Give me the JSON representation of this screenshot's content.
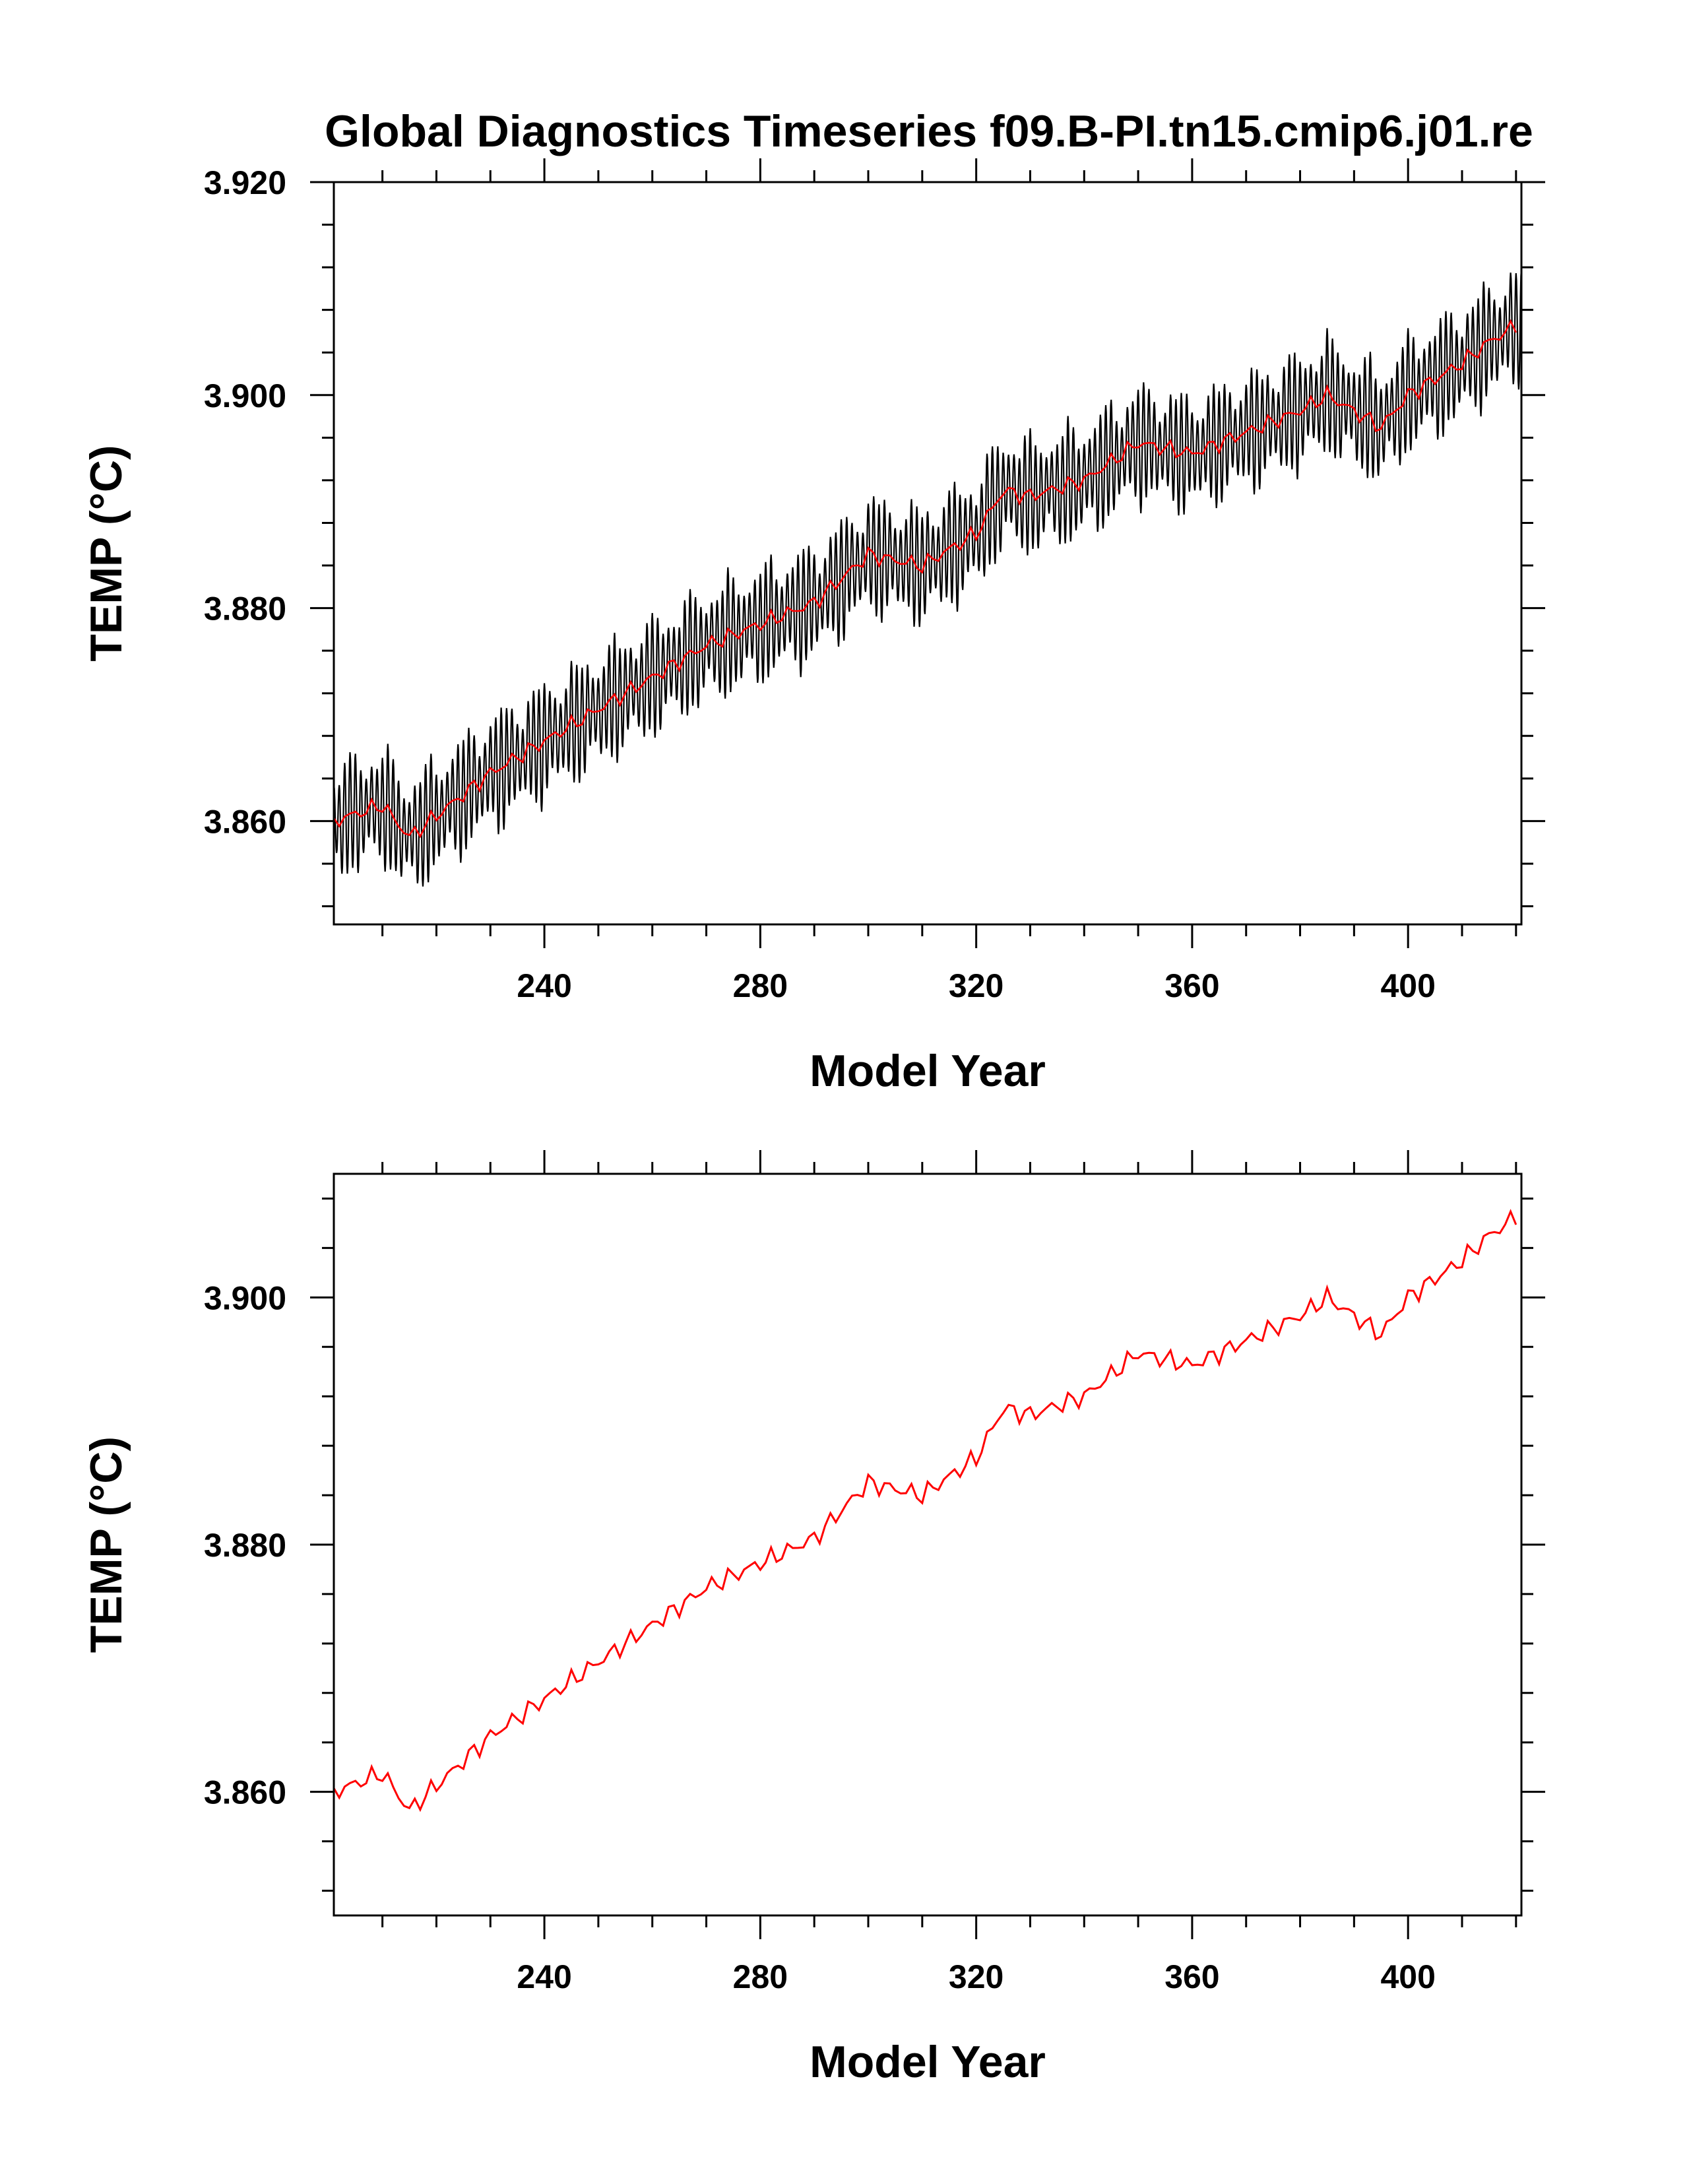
{
  "chart_data": [
    {
      "type": "line",
      "title": "Global Diagnostics Timeseries f09.B-PI.tn15.cmip6.j01.re",
      "xlabel": "Model Year",
      "ylabel": "TEMP (°C)",
      "xlim": [
        201,
        421
      ],
      "ylim": [
        3.8503,
        3.92
      ],
      "x_ticks": [
        240,
        280,
        320,
        360,
        400
      ],
      "x_tick_labels": [
        "240",
        "280",
        "320",
        "360",
        "400"
      ],
      "y_ticks": [
        3.86,
        3.88,
        3.9,
        3.92
      ],
      "y_tick_labels": [
        "3.860",
        "3.880",
        "3.900",
        "3.920"
      ],
      "grid": false,
      "legend": "none",
      "series": [
        {
          "role": "monthly",
          "color": "#000000",
          "x_start": 201,
          "x_end": 421,
          "seasonal_amplitude": 0.0055,
          "annual_mean": "same as annual series"
        },
        {
          "role": "annual",
          "color": "#ff0000",
          "x": [
            201,
            210,
            215,
            220,
            225,
            230,
            240,
            250,
            260,
            270,
            280,
            290,
            300,
            310,
            320,
            325,
            330,
            340,
            350,
            360,
            370,
            380,
            385,
            390,
            395,
            400,
            410,
            415,
            420
          ],
          "values": [
            3.86,
            3.8615,
            3.8585,
            3.8605,
            3.8625,
            3.8645,
            3.8675,
            3.8705,
            3.8735,
            3.8765,
            3.8785,
            3.8805,
            3.885,
            3.884,
            3.887,
            3.891,
            3.8905,
            3.892,
            3.8955,
            3.8945,
            3.8965,
            3.8985,
            3.9,
            3.8985,
            3.897,
            3.9,
            3.903,
            3.905,
            3.9065
          ]
        }
      ]
    },
    {
      "type": "line",
      "title": "",
      "xlabel": "Model Year",
      "ylabel": "TEMP (°C)",
      "xlim": [
        201,
        421
      ],
      "ylim": [
        3.85,
        3.91
      ],
      "x_ticks": [
        240,
        280,
        320,
        360,
        400
      ],
      "x_tick_labels": [
        "240",
        "280",
        "320",
        "360",
        "400"
      ],
      "y_ticks": [
        3.86,
        3.88,
        3.9
      ],
      "y_tick_labels": [
        "3.860",
        "3.880",
        "3.900"
      ],
      "grid": false,
      "legend": "none",
      "series": [
        {
          "role": "annual",
          "color": "#ff0000",
          "x": [
            201,
            210,
            215,
            220,
            225,
            230,
            240,
            250,
            260,
            270,
            280,
            290,
            300,
            310,
            320,
            325,
            330,
            340,
            350,
            360,
            370,
            380,
            385,
            390,
            395,
            400,
            410,
            415,
            420
          ],
          "values": [
            3.86,
            3.8615,
            3.8585,
            3.8605,
            3.8625,
            3.8645,
            3.8675,
            3.8705,
            3.8735,
            3.8765,
            3.8785,
            3.8805,
            3.885,
            3.884,
            3.887,
            3.891,
            3.8905,
            3.892,
            3.8955,
            3.8945,
            3.8965,
            3.8985,
            3.9,
            3.8985,
            3.897,
            3.9,
            3.903,
            3.905,
            3.9065
          ]
        }
      ]
    }
  ]
}
